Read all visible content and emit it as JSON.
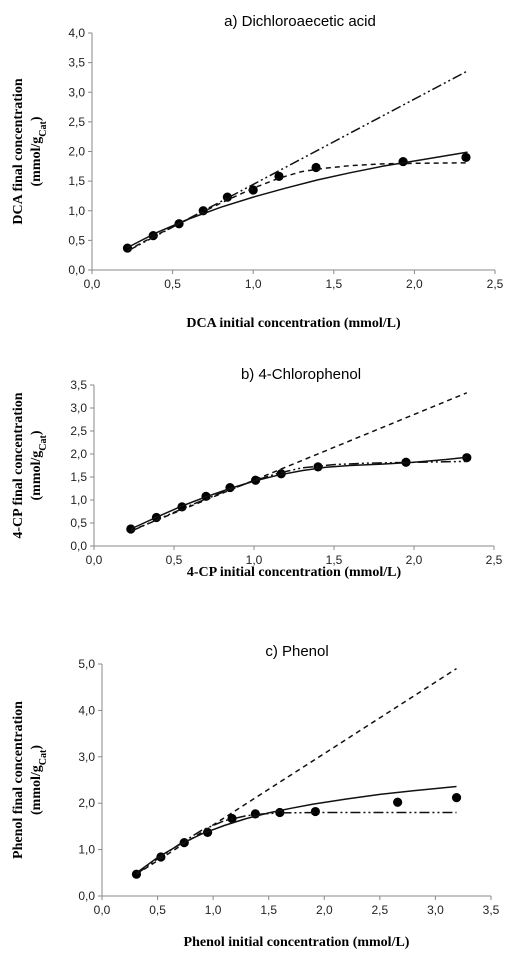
{
  "chart_data": [
    {
      "type": "scatter",
      "title": "a) Dichloroaecetic acid",
      "xlabel": "DCA initial concentration (mmol/L)",
      "ylabel_line1": "DCA final concentration",
      "ylabel_line2": "(mmol/g",
      "ylabel_sub": "Cat",
      "ylabel_close": ")",
      "xlim": [
        0,
        2.5
      ],
      "ylim": [
        0,
        4
      ],
      "xticks": [
        0,
        0.5,
        1,
        1.5,
        2,
        2.5
      ],
      "xtick_labels": [
        "0,0",
        "0,5",
        "1,0",
        "1,5",
        "2,0",
        "2,5"
      ],
      "yticks": [
        0,
        0.5,
        1,
        1.5,
        2,
        2.5,
        3,
        3.5,
        4
      ],
      "ytick_labels": [
        "0,0",
        "0,5",
        "1,0",
        "1,5",
        "2,0",
        "2,5",
        "3,0",
        "3,5",
        "4,0"
      ],
      "grid": false,
      "series": [
        {
          "style": "markers",
          "x": [
            0.22,
            0.38,
            0.54,
            0.69,
            0.84,
            1.0,
            1.16,
            1.39,
            1.93,
            2.32
          ],
          "y": [
            0.37,
            0.58,
            0.78,
            1.0,
            1.23,
            1.35,
            1.58,
            1.73,
            1.83,
            1.9
          ]
        },
        {
          "style": "solid",
          "x": [
            0.22,
            0.4,
            0.6,
            0.8,
            1.0,
            1.2,
            1.4,
            1.6,
            1.8,
            2.0,
            2.2,
            2.33
          ],
          "y": [
            0.38,
            0.63,
            0.86,
            1.06,
            1.23,
            1.38,
            1.52,
            1.64,
            1.75,
            1.84,
            1.93,
            1.99
          ]
        },
        {
          "style": "dashed",
          "x": [
            0.22,
            0.4,
            0.6,
            0.8,
            1.0,
            1.16,
            1.3,
            1.45,
            1.6,
            1.8,
            2.0,
            2.33
          ],
          "y": [
            0.33,
            0.59,
            0.86,
            1.13,
            1.38,
            1.55,
            1.66,
            1.72,
            1.76,
            1.79,
            1.8,
            1.81
          ]
        },
        {
          "style": "dashdot",
          "x": [
            0.22,
            2.33
          ],
          "y": [
            0.32,
            3.36
          ]
        }
      ]
    },
    {
      "type": "scatter",
      "title": "b) 4-Chlorophenol",
      "xlabel": "4-CP initial concentration (mmol/L)",
      "ylabel_line1": "4-CP final concentration",
      "ylabel_line2": "(mmol/g",
      "ylabel_sub": "Cat",
      "ylabel_close": ")",
      "xlim": [
        0,
        2.5
      ],
      "ylim": [
        0,
        3.5
      ],
      "xticks": [
        0,
        0.5,
        1,
        1.5,
        2,
        2.5
      ],
      "xtick_labels": [
        "0,0",
        "0,5",
        "1,0",
        "1,5",
        "2,0",
        "2,5"
      ],
      "yticks": [
        0,
        0.5,
        1,
        1.5,
        2,
        2.5,
        3,
        3.5
      ],
      "ytick_labels": [
        "0,0",
        "0,5",
        "1,0",
        "1,5",
        "2,0",
        "2,5",
        "3,0",
        "3,5"
      ],
      "grid": false,
      "series": [
        {
          "style": "markers",
          "x": [
            0.23,
            0.39,
            0.55,
            0.7,
            0.85,
            1.01,
            1.17,
            1.4,
            1.95,
            2.33
          ],
          "y": [
            0.37,
            0.62,
            0.85,
            1.08,
            1.27,
            1.43,
            1.57,
            1.72,
            1.82,
            1.92
          ]
        },
        {
          "style": "solid",
          "x": [
            0.23,
            0.4,
            0.55,
            0.7,
            0.85,
            1.0,
            1.15,
            1.3,
            1.45,
            1.6,
            1.8,
            2.0,
            2.2,
            2.33
          ],
          "y": [
            0.37,
            0.64,
            0.87,
            1.07,
            1.25,
            1.41,
            1.54,
            1.64,
            1.71,
            1.75,
            1.78,
            1.82,
            1.88,
            1.93
          ]
        },
        {
          "style": "dashed",
          "x": [
            0.23,
            2.33
          ],
          "y": [
            0.33,
            3.33
          ]
        },
        {
          "style": "dashdot",
          "x": [
            0.23,
            0.4,
            0.6,
            0.8,
            1.0,
            1.15,
            1.3,
            1.5,
            1.7,
            2.0,
            2.33
          ],
          "y": [
            0.32,
            0.58,
            0.88,
            1.16,
            1.42,
            1.58,
            1.7,
            1.77,
            1.8,
            1.82,
            1.84
          ]
        }
      ]
    },
    {
      "type": "scatter",
      "title": "c) Phenol",
      "xlabel": "Phenol initial concentration (mmol/L)",
      "ylabel_line1": "Phenol final concentration",
      "ylabel_line2": "(mmol/g",
      "ylabel_sub": "Cat",
      "ylabel_close": ")",
      "xlim": [
        0,
        3.5
      ],
      "ylim": [
        0,
        5
      ],
      "xticks": [
        0,
        0.5,
        1,
        1.5,
        2,
        2.5,
        3,
        3.5
      ],
      "xtick_labels": [
        "0,0",
        "0,5",
        "1,0",
        "1,5",
        "2,0",
        "2,5",
        "3,0",
        "3,5"
      ],
      "yticks": [
        0,
        1,
        2,
        3,
        4,
        5
      ],
      "ytick_labels": [
        "0,0",
        "1,0",
        "2,0",
        "3,0",
        "4,0",
        "5,0"
      ],
      "grid": false,
      "series": [
        {
          "style": "markers",
          "x": [
            0.31,
            0.53,
            0.74,
            0.95,
            1.17,
            1.38,
            1.6,
            1.92,
            2.66,
            3.19
          ],
          "y": [
            0.47,
            0.84,
            1.15,
            1.37,
            1.67,
            1.77,
            1.8,
            1.82,
            2.02,
            2.12
          ]
        },
        {
          "style": "solid",
          "x": [
            0.31,
            0.5,
            0.7,
            0.9,
            1.1,
            1.3,
            1.5,
            1.7,
            1.9,
            2.2,
            2.5,
            2.8,
            3.19
          ],
          "y": [
            0.5,
            0.83,
            1.11,
            1.34,
            1.52,
            1.67,
            1.79,
            1.89,
            1.98,
            2.09,
            2.19,
            2.27,
            2.36
          ]
        },
        {
          "style": "dashed",
          "x": [
            0.31,
            3.19
          ],
          "y": [
            0.47,
            4.9
          ]
        },
        {
          "style": "dashdot",
          "x": [
            0.31,
            0.5,
            0.7,
            0.9,
            1.1,
            1.3,
            1.45,
            1.6,
            2.0,
            2.5,
            3.19
          ],
          "y": [
            0.47,
            0.8,
            1.12,
            1.42,
            1.62,
            1.73,
            1.77,
            1.79,
            1.8,
            1.8,
            1.8
          ]
        }
      ]
    }
  ]
}
